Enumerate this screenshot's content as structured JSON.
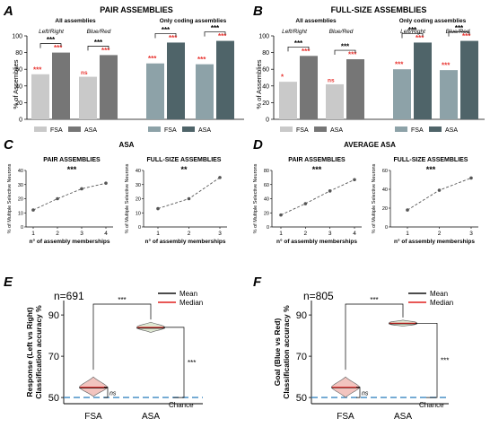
{
  "colors": {
    "fsa_gray": "#c9c9c9",
    "asa_gray": "#767676",
    "fsa_teal": "#8da2a8",
    "asa_teal": "#4f6469",
    "star_red": "#e8332f",
    "line_gray": "#555555",
    "chance_blue": "#3a86c2",
    "violin_red_fill": "#f2c4bf",
    "violin_green_fill": "#dfe8d3",
    "mean_line": "#111111",
    "median_line": "#e0201f"
  },
  "chart_data": [
    {
      "id": "A",
      "type": "bar",
      "panel_letter": "A",
      "title": "PAIR ASSEMBLIES",
      "ylabel": "% of Assemblies",
      "ylim": [
        0,
        100
      ],
      "yticks": [
        0,
        20,
        40,
        60,
        80,
        100
      ],
      "legend": [
        "FSA",
        "ASA"
      ],
      "groups": [
        {
          "header": "All assemblies",
          "sub": "Left/Right",
          "values": [
            54,
            80
          ],
          "colors": [
            "fsa_gray",
            "asa_gray"
          ],
          "stars": [
            "***",
            "***"
          ],
          "bracket": "***"
        },
        {
          "sub": "Blue/Red",
          "values": [
            51,
            77
          ],
          "colors": [
            "fsa_gray",
            "asa_gray"
          ],
          "stars": [
            "ns",
            "***"
          ],
          "bracket": "***"
        },
        {
          "header": "Only coding assemblies",
          "sub": "",
          "values": [
            67,
            92
          ],
          "colors": [
            "fsa_teal",
            "asa_teal"
          ],
          "stars": [
            "***",
            "***"
          ],
          "bracket": "***"
        },
        {
          "sub": "",
          "values": [
            66,
            94
          ],
          "colors": [
            "fsa_teal",
            "asa_teal"
          ],
          "stars": [
            "***",
            "***"
          ],
          "bracket": "***"
        }
      ]
    },
    {
      "id": "B",
      "type": "bar",
      "panel_letter": "B",
      "title": "FULL-SIZE ASSEMBLIES",
      "ylabel": "% of Assemblies",
      "ylim": [
        0,
        100
      ],
      "yticks": [
        0,
        20,
        40,
        60,
        80,
        100
      ],
      "legend": [
        "FSA",
        "ASA"
      ],
      "groups": [
        {
          "header": "All assemblies",
          "sub": "Left/Right",
          "values": [
            45,
            76
          ],
          "colors": [
            "fsa_gray",
            "asa_gray"
          ],
          "stars": [
            "*",
            "***"
          ],
          "bracket": "***"
        },
        {
          "sub": "Blue/Red",
          "values": [
            42,
            72
          ],
          "colors": [
            "fsa_gray",
            "asa_gray"
          ],
          "stars": [
            "ns",
            "***"
          ],
          "bracket": "***"
        },
        {
          "header": "Only coding assemblies",
          "sub": "Left/Right",
          "values": [
            60,
            92
          ],
          "colors": [
            "fsa_teal",
            "asa_teal"
          ],
          "stars": [
            "***",
            "***"
          ],
          "bracket": "***"
        },
        {
          "sub": "Blue/Red",
          "values": [
            59,
            94
          ],
          "colors": [
            "fsa_teal",
            "asa_teal"
          ],
          "stars": [
            "***",
            "***"
          ],
          "bracket": "***"
        }
      ]
    },
    {
      "id": "C",
      "panel_letter": "C",
      "header": "ASA",
      "type": "line",
      "subplots": [
        {
          "title": "PAIR ASSEMBLIES",
          "stars": "***",
          "ylabel": "% of Multiple Selective Neurons",
          "xlabel": "n° of assembly memberships",
          "x": [
            1,
            2,
            3,
            4
          ],
          "y": [
            12,
            20,
            27,
            31
          ],
          "xticks": [
            1,
            2,
            3,
            4
          ],
          "ylim": [
            0,
            40
          ],
          "yticks": [
            0,
            10,
            20,
            30,
            40
          ]
        },
        {
          "title": "FULL-SIZE ASSEMBLIES",
          "stars": "**",
          "ylabel": "% of Multiple Selective Neurons",
          "xlabel": "n° of assembly memberships",
          "x": [
            1,
            2,
            3
          ],
          "y": [
            13,
            20,
            35
          ],
          "xticks": [
            1,
            2,
            3
          ],
          "ylim": [
            0,
            40
          ],
          "yticks": [
            0,
            10,
            20,
            30,
            40
          ]
        }
      ]
    },
    {
      "id": "D",
      "panel_letter": "D",
      "header": "AVERAGE ASA",
      "type": "line",
      "subplots": [
        {
          "title": "PAIR ASSEMBLIES",
          "stars": "***",
          "ylabel": "% of Multiple Selective Neurons",
          "xlabel": "n° of assembly memberships",
          "x": [
            1,
            2,
            3,
            4
          ],
          "y": [
            17,
            33,
            51,
            67
          ],
          "xticks": [
            1,
            2,
            3,
            4
          ],
          "ylim": [
            0,
            80
          ],
          "yticks": [
            0,
            20,
            40,
            60,
            80
          ]
        },
        {
          "title": "FULL-SIZE ASSEMBLIES",
          "stars": "***",
          "ylabel": "% of Multiple Selective Neurons",
          "xlabel": "n° of assembly memberships",
          "x": [
            1,
            2,
            3
          ],
          "y": [
            18,
            39,
            52
          ],
          "xticks": [
            1,
            2,
            3
          ],
          "ylim": [
            0,
            60
          ],
          "yticks": [
            0,
            20,
            40,
            60
          ]
        }
      ]
    },
    {
      "id": "E",
      "panel_letter": "E",
      "type": "violin",
      "n_label": "n=691",
      "ylabel": [
        "Response (Left vs Right)",
        "Classification accuracy %"
      ],
      "categories": [
        "FSA",
        "ASA"
      ],
      "ylim": [
        47,
        97
      ],
      "yticks": [
        50,
        70,
        90
      ],
      "chance_level": 50,
      "chance_label": "Chance",
      "fsa": {
        "median": 55,
        "mean": 54.7,
        "min": 50.5,
        "max": 60,
        "halfwidth": 4
      },
      "asa": {
        "median": 84,
        "mean": 83.7,
        "min": 81.5,
        "max": 86.5,
        "halfwidth": 4
      },
      "top_bracket_label": "***",
      "right_bracket_label": "***",
      "ns_label": "ns",
      "legend": [
        {
          "label": "Mean",
          "color": "mean_line"
        },
        {
          "label": "Median",
          "color": "median_line"
        }
      ]
    },
    {
      "id": "F",
      "panel_letter": "F",
      "type": "violin",
      "n_label": "n=805",
      "ylabel": [
        "Goal (Blue vs Red)",
        "Classification accuracy %"
      ],
      "categories": [
        "FSA",
        "ASA"
      ],
      "ylim": [
        47,
        97
      ],
      "yticks": [
        50,
        70,
        90
      ],
      "chance_level": 50,
      "chance_label": "Chance",
      "fsa": {
        "median": 55,
        "mean": 54.8,
        "min": 50,
        "max": 60,
        "halfwidth": 4
      },
      "asa": {
        "median": 86,
        "mean": 85.8,
        "min": 84.5,
        "max": 87.5,
        "halfwidth": 4
      },
      "top_bracket_label": "***",
      "right_bracket_label": "***",
      "ns_label": "ns",
      "legend": [
        {
          "label": "Mean",
          "color": "mean_line"
        },
        {
          "label": "Median",
          "color": "median_line"
        }
      ]
    }
  ]
}
